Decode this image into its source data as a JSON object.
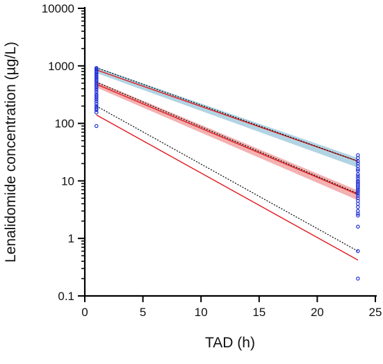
{
  "chart_data": {
    "type": "scatter",
    "title": "",
    "xlabel": "TAD (h)",
    "ylabel": "Lenalidomide concentration (µg/L)",
    "xlim": [
      0,
      25
    ],
    "ylim": [
      0.1,
      10000
    ],
    "y_scale": "log",
    "grid": false,
    "legend": "none",
    "x_ticks": [
      "0",
      "5",
      "10",
      "15",
      "20",
      "25"
    ],
    "y_ticks": [
      "0.1",
      "1",
      "10",
      "100",
      "1000",
      "10000"
    ],
    "colors": {
      "observed": "#1f2fd6",
      "prediction": "#e0191f",
      "observed_percentile": "#111111",
      "upper_band": "#a9cfe0",
      "median_band": "#f2a9a9"
    },
    "observed_points": {
      "x": [
        1,
        1,
        1,
        1,
        1,
        1,
        1,
        1,
        1,
        1,
        1,
        1,
        1,
        1,
        1,
        1,
        1,
        1,
        1,
        1,
        1,
        1,
        1,
        1,
        1,
        1,
        1,
        1,
        1,
        1,
        23.5,
        23.5,
        23.5,
        23.5,
        23.5,
        23.5,
        23.5,
        23.5,
        23.5,
        23.5,
        23.5,
        23.5,
        23.5,
        23.5,
        23.5,
        23.5,
        23.5,
        23.5,
        23.5,
        23.5,
        23.5,
        23.5,
        23.5,
        23.5,
        23.5,
        23.5,
        23.5,
        23.5,
        23.5,
        23.5
      ],
      "y": [
        920,
        880,
        850,
        800,
        760,
        720,
        690,
        650,
        620,
        590,
        560,
        530,
        500,
        470,
        440,
        410,
        380,
        350,
        320,
        300,
        280,
        260,
        240,
        220,
        200,
        190,
        180,
        170,
        155,
        90,
        28,
        25,
        22,
        20,
        18,
        16,
        15,
        13,
        12,
        11,
        10,
        9.5,
        9,
        8.5,
        8,
        7.5,
        7,
        6.5,
        6,
        5.5,
        5,
        4.5,
        4,
        3.5,
        3,
        2.7,
        2.5,
        1.6,
        0.6,
        0.2
      ]
    },
    "lines": [
      {
        "role": "prediction",
        "percentile": "upper",
        "x": [
          1,
          23.5
        ],
        "y": [
          850,
          22
        ],
        "band": [
          [
            950,
            25
          ],
          [
            750,
            17
          ]
        ]
      },
      {
        "role": "prediction",
        "percentile": "median",
        "x": [
          1,
          23.5
        ],
        "y": [
          480,
          5.8
        ],
        "band": [
          [
            540,
            6.8
          ],
          [
            420,
            4.6
          ]
        ]
      },
      {
        "role": "prediction",
        "percentile": "lower",
        "x": [
          1,
          23.5
        ],
        "y": [
          140,
          0.42
        ]
      },
      {
        "role": "observed_percentile",
        "percentile": "upper",
        "x": [
          1,
          23.5
        ],
        "y": [
          930,
          22
        ]
      },
      {
        "role": "observed_percentile",
        "percentile": "median",
        "x": [
          1,
          23.5
        ],
        "y": [
          520,
          6
        ]
      },
      {
        "role": "observed_percentile",
        "percentile": "lower",
        "x": [
          1,
          23.5
        ],
        "y": [
          200,
          0.6
        ]
      }
    ]
  }
}
